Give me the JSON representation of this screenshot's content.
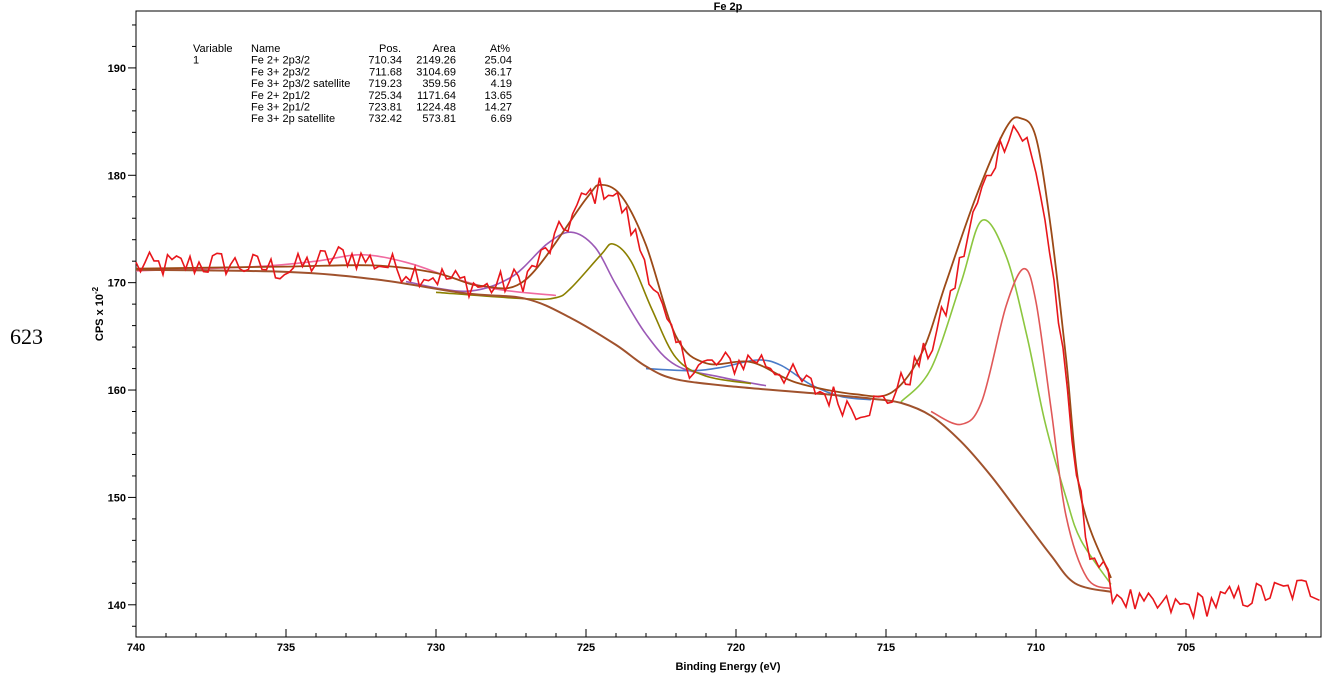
{
  "page_number": "623",
  "chart_data": {
    "type": "line",
    "title": "Fe 2p",
    "xlabel": "Binding Energy (eV)",
    "ylabel_main": "CPS x 10",
    "ylabel_exp": "-2",
    "xlim": [
      740,
      700.5
    ],
    "ylim": [
      137,
      195.3
    ],
    "x_ticks": [
      740,
      735,
      730,
      725,
      720,
      715,
      710,
      705
    ],
    "y_ticks": [
      140,
      150,
      160,
      170,
      180,
      190
    ],
    "table": {
      "headers": [
        "Variable",
        "Name",
        "Pos.",
        "Area",
        "At%"
      ],
      "variable": "1",
      "rows": [
        [
          "Fe 2+ 2p3/2",
          "710.34",
          "2149.26",
          "25.04"
        ],
        [
          "Fe 3+ 2p3/2",
          "711.68",
          "3104.69",
          "36.17"
        ],
        [
          "Fe 3+ 2p3/2 satellite",
          "719.23",
          "359.56",
          "4.19"
        ],
        [
          "Fe 2+ 2p1/2",
          "725.34",
          "1171.64",
          "13.65"
        ],
        [
          "Fe 3+ 2p1/2",
          "723.81",
          "1224.48",
          "14.27"
        ],
        [
          "Fe 3+ 2p satellite",
          "732.42",
          "573.81",
          "6.69"
        ]
      ]
    },
    "colors": {
      "raw": "#e8161b",
      "envelope": "#9c4a17",
      "background": "#a0522d",
      "fe3_2p3": "#8cc63f",
      "fe2_2p3": "#e05858",
      "fe2_2p1": "#9b59b6",
      "fe3_2p1": "#8b8000",
      "sat_2p3": "#4a7cc9",
      "sat_2p": "#f06aa0"
    },
    "background_curve": [
      [
        740,
        171.2
      ],
      [
        735,
        171.0
      ],
      [
        732,
        170.3
      ],
      [
        729,
        169.0
      ],
      [
        727,
        168.5
      ],
      [
        725.5,
        166.7
      ],
      [
        724,
        164.2
      ],
      [
        723,
        162.2
      ],
      [
        722,
        161.0
      ],
      [
        720,
        160.3
      ],
      [
        717,
        159.6
      ],
      [
        715.5,
        159.2
      ],
      [
        714.5,
        158.8
      ],
      [
        713.5,
        157.6
      ],
      [
        712.5,
        155.2
      ],
      [
        711.5,
        152.0
      ],
      [
        710.5,
        148.3
      ],
      [
        709.5,
        144.6
      ],
      [
        708.7,
        142.0
      ],
      [
        707.5,
        141.2
      ]
    ],
    "envelope_curve": [
      [
        740,
        171.3
      ],
      [
        735,
        171.5
      ],
      [
        732,
        171.6
      ],
      [
        730,
        170.9
      ],
      [
        728.5,
        169.7
      ],
      [
        727,
        170.3
      ],
      [
        725,
        177.8
      ],
      [
        724.5,
        179.1
      ],
      [
        723.8,
        178.0
      ],
      [
        723,
        173.5
      ],
      [
        722,
        165.0
      ],
      [
        721,
        162.5
      ],
      [
        719.5,
        162.6
      ],
      [
        718,
        160.7
      ],
      [
        716,
        159.6
      ],
      [
        714.8,
        159.8
      ],
      [
        713.8,
        163.5
      ],
      [
        713,
        170.0
      ],
      [
        712,
        178.0
      ],
      [
        711,
        184.4
      ],
      [
        710.5,
        185.3
      ],
      [
        710,
        183.5
      ],
      [
        709.5,
        175.0
      ],
      [
        709,
        163.0
      ],
      [
        708.5,
        150.0
      ],
      [
        707.5,
        142.5
      ]
    ],
    "fe3_2p3_curve": [
      [
        714.5,
        158.9
      ],
      [
        713.5,
        162.0
      ],
      [
        712.5,
        170.0
      ],
      [
        711.8,
        175.8
      ],
      [
        711,
        172.5
      ],
      [
        710.3,
        165.0
      ],
      [
        709.7,
        157.0
      ],
      [
        709,
        150.0
      ],
      [
        708.5,
        146.0
      ],
      [
        707.5,
        141.9
      ]
    ],
    "fe2_2p3_curve": [
      [
        713.5,
        158.0
      ],
      [
        712.5,
        156.8
      ],
      [
        711.8,
        159.0
      ],
      [
        711,
        167.8
      ],
      [
        710.4,
        171.3
      ],
      [
        710,
        168.2
      ],
      [
        709.5,
        158.3
      ],
      [
        709,
        148.3
      ],
      [
        708.3,
        142.5
      ],
      [
        707.5,
        141.5
      ]
    ],
    "fe2_2p1_curve": [
      [
        731,
        170.1
      ],
      [
        729,
        169.2
      ],
      [
        727.5,
        170.5
      ],
      [
        726.3,
        173.6
      ],
      [
        725.5,
        174.7
      ],
      [
        724.7,
        173.3
      ],
      [
        724,
        169.8
      ],
      [
        723,
        165.2
      ],
      [
        722,
        162.3
      ],
      [
        720.5,
        161.2
      ],
      [
        719,
        160.4
      ]
    ],
    "fe3_2p1_curve": [
      [
        730,
        169.1
      ],
      [
        727,
        168.5
      ],
      [
        726,
        168.6
      ],
      [
        725.5,
        169.5
      ],
      [
        724.5,
        172.6
      ],
      [
        724.1,
        173.6
      ],
      [
        723.5,
        172.0
      ],
      [
        722.8,
        167.5
      ],
      [
        722,
        163.0
      ],
      [
        721,
        161.3
      ],
      [
        719.5,
        160.6
      ]
    ],
    "sat_2p3_curve": [
      [
        723,
        162.0
      ],
      [
        721.5,
        161.8
      ],
      [
        720.5,
        162.1
      ],
      [
        719.3,
        162.8
      ],
      [
        718.5,
        162.3
      ],
      [
        717.5,
        160.5
      ],
      [
        716.5,
        159.4
      ],
      [
        715.5,
        159.1
      ]
    ],
    "sat_2p_curve": [
      [
        740,
        171.1
      ],
      [
        736,
        171.5
      ],
      [
        734,
        172.0
      ],
      [
        732.5,
        172.6
      ],
      [
        731,
        171.9
      ],
      [
        729.5,
        170.5
      ],
      [
        728,
        169.4
      ],
      [
        726,
        168.8
      ]
    ],
    "raw_anchors": [
      [
        740,
        171.5
      ],
      [
        737,
        171.8
      ],
      [
        735,
        171.2
      ],
      [
        733,
        172.6
      ],
      [
        731,
        171.2
      ],
      [
        729,
        170.0
      ],
      [
        728.3,
        169.5
      ],
      [
        727,
        170.5
      ],
      [
        726,
        174.0
      ],
      [
        725,
        178.0
      ],
      [
        724.3,
        179.0
      ],
      [
        723.8,
        177.0
      ],
      [
        723,
        172.0
      ],
      [
        722.2,
        165.0
      ],
      [
        721.5,
        162.2
      ],
      [
        720,
        162.5
      ],
      [
        719.3,
        163.0
      ],
      [
        718.5,
        161.8
      ],
      [
        717.5,
        160.3
      ],
      [
        716,
        158.3
      ],
      [
        715,
        159.0
      ],
      [
        714.5,
        160.5
      ],
      [
        713.5,
        164.0
      ],
      [
        712.8,
        169.0
      ],
      [
        712,
        177.0
      ],
      [
        711.3,
        182.0
      ],
      [
        710.8,
        184.8
      ],
      [
        710.3,
        183.0
      ],
      [
        709.8,
        178.0
      ],
      [
        709.3,
        168.0
      ],
      [
        708.8,
        155.0
      ],
      [
        708.3,
        146.0
      ],
      [
        707.5,
        141.5
      ],
      [
        706.5,
        139.8
      ],
      [
        705,
        139.8
      ],
      [
        703,
        140.8
      ],
      [
        701,
        141.5
      ],
      [
        700.5,
        141.5
      ]
    ],
    "raw_noise_amp": 1.3,
    "raw_step": 0.15
  }
}
